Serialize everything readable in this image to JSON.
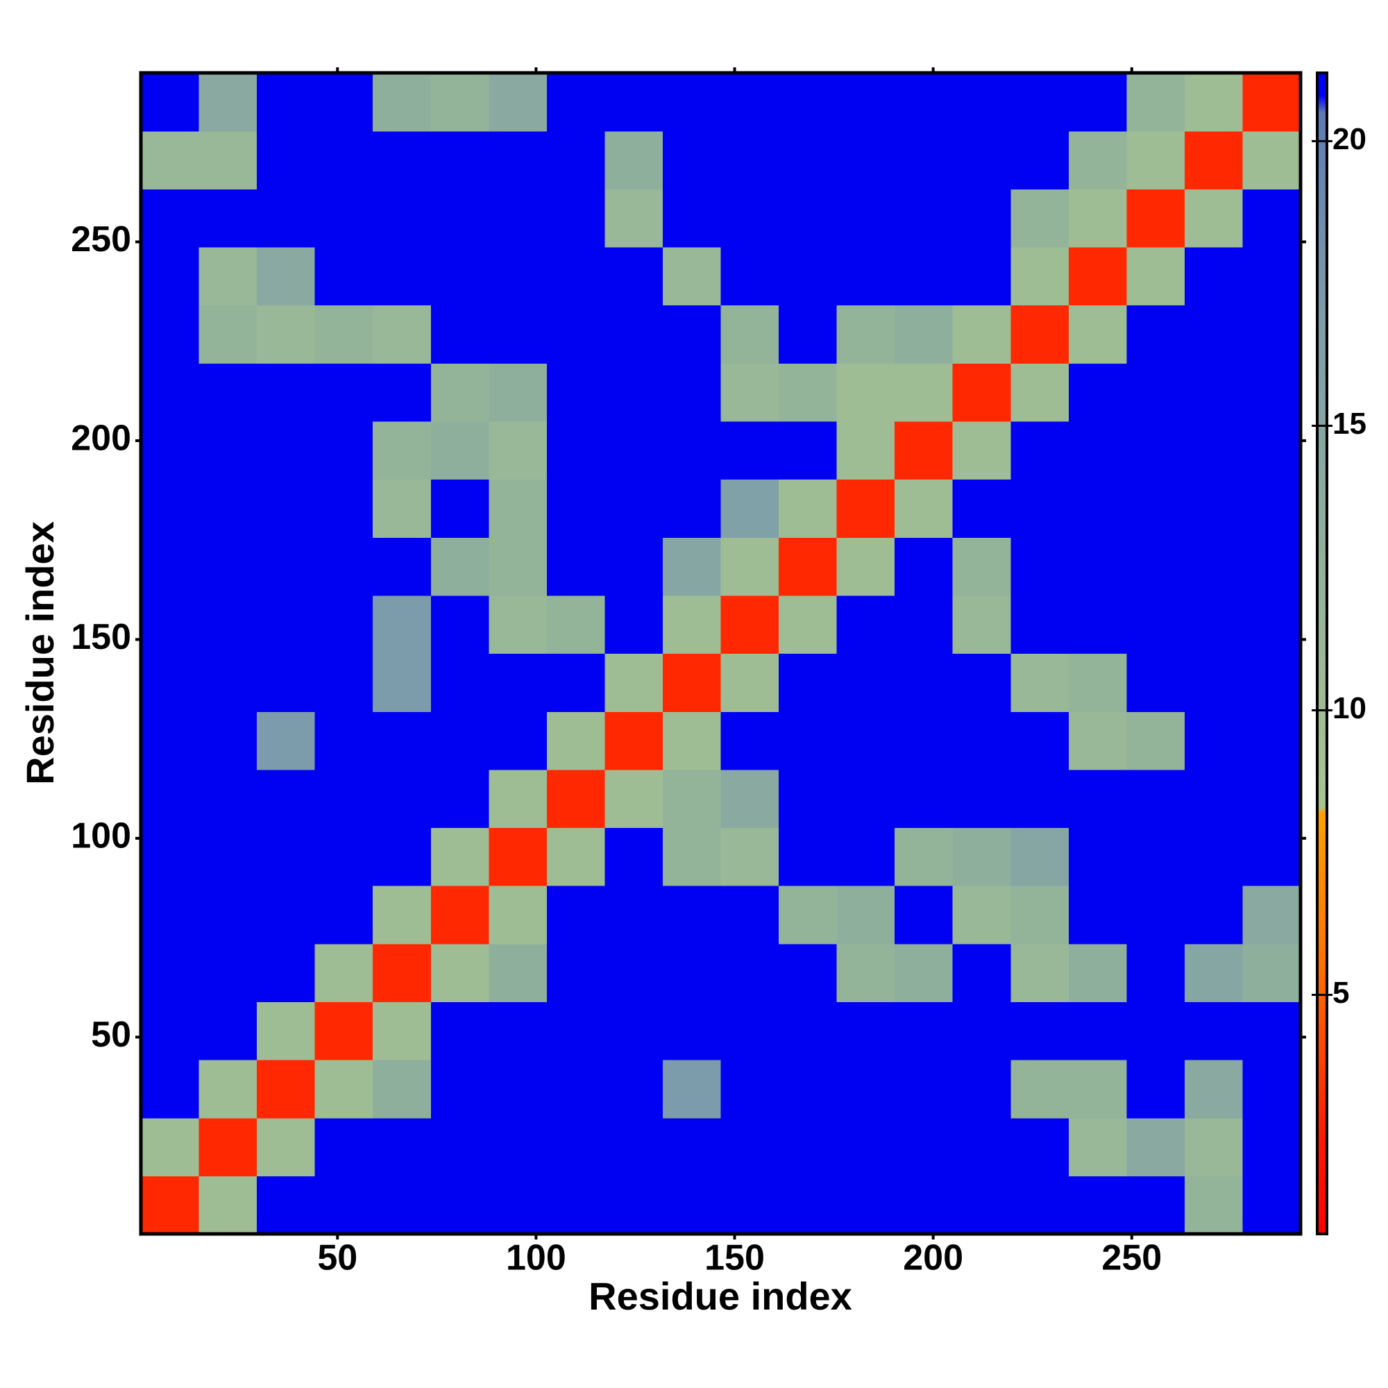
{
  "chart_data": {
    "type": "heatmap",
    "x_label": "Residue index",
    "y_label": "Residue index",
    "xlim": [
      0.5,
      292.5
    ],
    "ylim": [
      0.5,
      292.5
    ],
    "xticks": [
      50,
      100,
      150,
      200,
      250
    ],
    "yticks": [
      50,
      100,
      150,
      200,
      250
    ],
    "values": [
      [
        3,
        10,
        21.2,
        21.2,
        21.2,
        21.2,
        21.2,
        21.2,
        21.2,
        21.2,
        21.2,
        21.2,
        21.2,
        21.2,
        21.2,
        21.2,
        21.2,
        21.2,
        12,
        21.2
      ],
      [
        10,
        3,
        10,
        21.2,
        21.2,
        21.2,
        21.2,
        21.2,
        21.2,
        21.2,
        21.2,
        21.2,
        21.2,
        21.2,
        21.2,
        21.2,
        11,
        14,
        11,
        21.2
      ],
      [
        21.2,
        10,
        3,
        10,
        13,
        21.2,
        21.2,
        21.2,
        21.2,
        17,
        21.2,
        21.2,
        21.2,
        21.2,
        21.2,
        12,
        12,
        21.2,
        14,
        21.2
      ],
      [
        21.2,
        21.2,
        10,
        3,
        10,
        21.2,
        21.2,
        21.2,
        21.2,
        21.2,
        21.2,
        21.2,
        21.2,
        21.2,
        21.2,
        21.2,
        21.2,
        21.2,
        21.2,
        21.2
      ],
      [
        21.2,
        21.2,
        21.2,
        10,
        3,
        10,
        13,
        21.2,
        21.2,
        21.2,
        21.2,
        21.2,
        12,
        13,
        21.2,
        11,
        13,
        21.2,
        15,
        13
      ],
      [
        21.2,
        21.2,
        21.2,
        21.2,
        10,
        3,
        10,
        21.2,
        21.2,
        21.2,
        21.2,
        12,
        13,
        21.2,
        11,
        12,
        21.2,
        21.2,
        21.2,
        14
      ],
      [
        21.2,
        21.2,
        21.2,
        21.2,
        21.2,
        10,
        3,
        10,
        21.2,
        12,
        11,
        21.2,
        21.2,
        12,
        13,
        15,
        21.2,
        21.2,
        21.2,
        21.2
      ],
      [
        21.2,
        21.2,
        21.2,
        21.2,
        21.2,
        21.2,
        10,
        3,
        10,
        12,
        14,
        21.2,
        21.2,
        21.2,
        21.2,
        21.2,
        21.2,
        21.2,
        21.2,
        21.2
      ],
      [
        21.2,
        21.2,
        17,
        21.2,
        21.2,
        21.2,
        21.2,
        10,
        3,
        10,
        21.2,
        21.2,
        21.2,
        21.2,
        21.2,
        21.2,
        11,
        12,
        21.2,
        21.2
      ],
      [
        21.2,
        21.2,
        21.2,
        21.2,
        17,
        21.2,
        21.2,
        21.2,
        10,
        3,
        10,
        21.2,
        21.2,
        21.2,
        21.2,
        11,
        12,
        21.2,
        21.2,
        21.2
      ],
      [
        21.2,
        21.2,
        21.2,
        21.2,
        17,
        21.2,
        11,
        12,
        21.2,
        10,
        3,
        10,
        21.2,
        21.2,
        11,
        21.2,
        21.2,
        21.2,
        21.2,
        21.2
      ],
      [
        21.2,
        21.2,
        21.2,
        21.2,
        21.2,
        13,
        12,
        21.2,
        21.2,
        15,
        10,
        3,
        10,
        21.2,
        12,
        21.2,
        21.2,
        21.2,
        21.2,
        21.2
      ],
      [
        21.2,
        21.2,
        21.2,
        21.2,
        11,
        21.2,
        12,
        21.2,
        21.2,
        21.2,
        16,
        10,
        3,
        10,
        21.2,
        21.2,
        21.2,
        21.2,
        21.2,
        21.2
      ],
      [
        21.2,
        21.2,
        21.2,
        21.2,
        12,
        13,
        11,
        21.2,
        21.2,
        21.2,
        21.2,
        21.2,
        10,
        3,
        10,
        21.2,
        21.2,
        21.2,
        21.2,
        21.2
      ],
      [
        21.2,
        21.2,
        21.2,
        21.2,
        21.2,
        12,
        13,
        21.2,
        21.2,
        21.2,
        11,
        12,
        10,
        10,
        3,
        10,
        21.2,
        21.2,
        21.2,
        21.2
      ],
      [
        21.2,
        12,
        11,
        12,
        11,
        21.2,
        21.2,
        21.2,
        21.2,
        21.2,
        12,
        21.2,
        12,
        13,
        10,
        3,
        10,
        21.2,
        21.2,
        21.2
      ],
      [
        21.2,
        11,
        14,
        21.2,
        21.2,
        21.2,
        21.2,
        21.2,
        21.2,
        11,
        21.2,
        21.2,
        21.2,
        21.2,
        21.2,
        10,
        3,
        10,
        21.2,
        21.2
      ],
      [
        21.2,
        21.2,
        21.2,
        21.2,
        21.2,
        21.2,
        21.2,
        21.2,
        11,
        21.2,
        21.2,
        21.2,
        21.2,
        21.2,
        21.2,
        12,
        10,
        3,
        10,
        21.2
      ],
      [
        11,
        11,
        21.2,
        21.2,
        21.2,
        21.2,
        21.2,
        21.2,
        13,
        21.2,
        21.2,
        21.2,
        21.2,
        21.2,
        21.2,
        21.2,
        12,
        10,
        3,
        10
      ],
      [
        21.2,
        14,
        21.2,
        21.2,
        13,
        12,
        14,
        21.2,
        21.2,
        21.2,
        21.2,
        21.2,
        21.2,
        21.2,
        21.2,
        21.2,
        21.2,
        12,
        10,
        3
      ]
    ],
    "colorbar": {
      "lim": [
        0.8,
        21.2
      ],
      "ticks": [
        5,
        10,
        15,
        20
      ],
      "colormap": [
        {
          "value": 0.8,
          "color": "#ff0000"
        },
        {
          "value": 2.5,
          "color": "#ff1a00"
        },
        {
          "value": 5.5,
          "color": "#ff7000"
        },
        {
          "value": 8.2,
          "color": "#ffa000"
        },
        {
          "value": 8.3,
          "color": "#a8c48e"
        },
        {
          "value": 12,
          "color": "#94b49a"
        },
        {
          "value": 17,
          "color": "#7c9cab"
        },
        {
          "value": 20.5,
          "color": "#5a7cb4"
        },
        {
          "value": 20.8,
          "color": "#0000ff"
        },
        {
          "value": 21.2,
          "color": "#0000f2"
        }
      ]
    }
  }
}
